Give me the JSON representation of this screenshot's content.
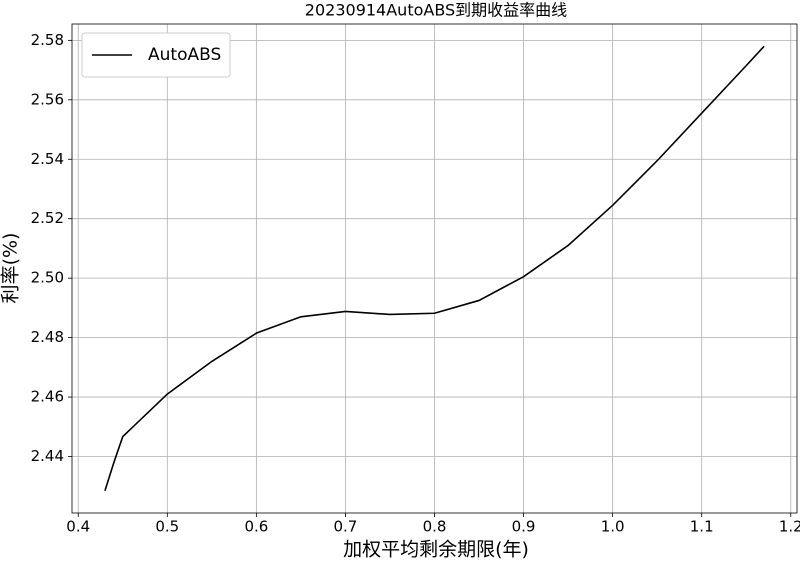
{
  "chart_data": {
    "type": "line",
    "title": "20230914AutoABS到期收益率曲线",
    "xlabel": "加权平均剩余期限(年)",
    "ylabel": "利率(%)",
    "x": [
      0.43,
      0.44,
      0.45,
      0.5,
      0.55,
      0.6,
      0.65,
      0.7,
      0.75,
      0.8,
      0.85,
      0.9,
      0.95,
      1.0,
      1.05,
      1.1,
      1.15,
      1.17
    ],
    "series": [
      {
        "name": "AutoABS",
        "color": "#000000",
        "values": [
          2.4285,
          2.438,
          2.4467,
          2.461,
          2.472,
          2.4815,
          2.487,
          2.4888,
          2.4878,
          2.4882,
          2.4925,
          2.5005,
          2.511,
          2.5245,
          2.5395,
          2.5555,
          2.5715,
          2.578
        ]
      }
    ],
    "xlim": [
      0.393,
      1.207
    ],
    "ylim": [
      2.421,
      2.5855
    ],
    "xticks": [
      0.4,
      0.5,
      0.6,
      0.7,
      0.8,
      0.9,
      {
        "value": 1,
        "label": "1.0"
      },
      1.1,
      1.2
    ],
    "yticks": [
      2.44,
      2.46,
      2.48,
      {
        "value": 2.5,
        "label": "2.50"
      },
      2.52,
      2.54,
      2.56,
      2.58
    ],
    "grid": true,
    "legend": "upper-left"
  }
}
